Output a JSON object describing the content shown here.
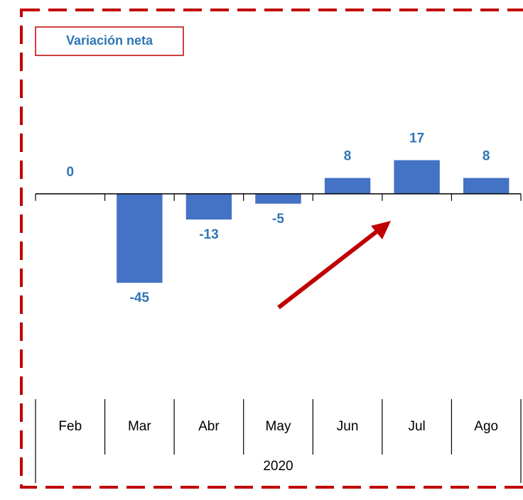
{
  "chart_data": {
    "type": "bar",
    "title": "Variación neta",
    "categories": [
      "Feb",
      "Mar",
      "Abr",
      "May",
      "Jun",
      "Jul",
      "Ago"
    ],
    "values": [
      0,
      -45,
      -13,
      -5,
      8,
      17,
      8
    ],
    "color": "#4472c4",
    "label_color": "#2e75b6",
    "group_label": "2020",
    "ylim": [
      -60,
      80
    ]
  }
}
